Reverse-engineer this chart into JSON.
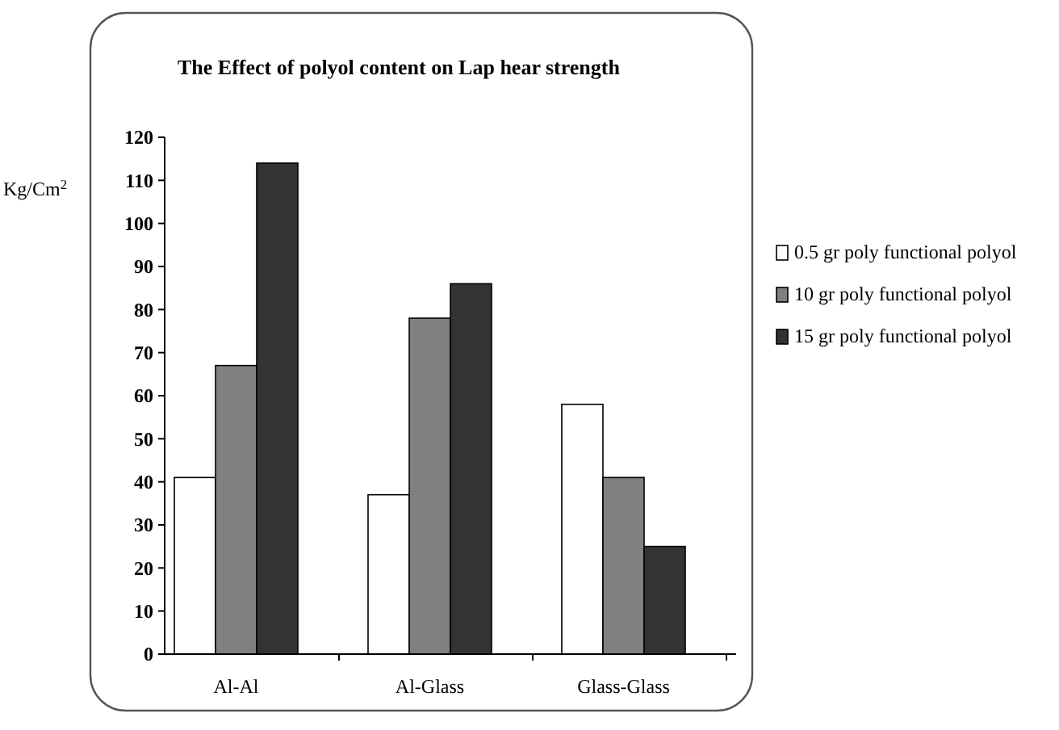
{
  "chart_data": {
    "type": "bar",
    "title": "The Effect of polyol content on Lap hear strength",
    "ylabel": "Kg/Cm$^{2}$",
    "categories": [
      "Al-Al",
      "Al-Glass",
      "Glass-Glass"
    ],
    "series": [
      {
        "name": "0.5 gr poly functional polyol",
        "color": "#ffffff",
        "values": [
          41,
          37,
          58
        ]
      },
      {
        "name": "10 gr poly functional polyol",
        "color": "#808080",
        "values": [
          67,
          78,
          41
        ]
      },
      {
        "name": "15 gr poly functional polyol",
        "color": "#333333",
        "values": [
          114,
          86,
          25
        ]
      }
    ],
    "ylim": [
      0,
      120
    ],
    "yticks": [
      0,
      10,
      20,
      30,
      40,
      50,
      60,
      70,
      80,
      90,
      100,
      110,
      120
    ],
    "grid": false,
    "legend": "right"
  }
}
